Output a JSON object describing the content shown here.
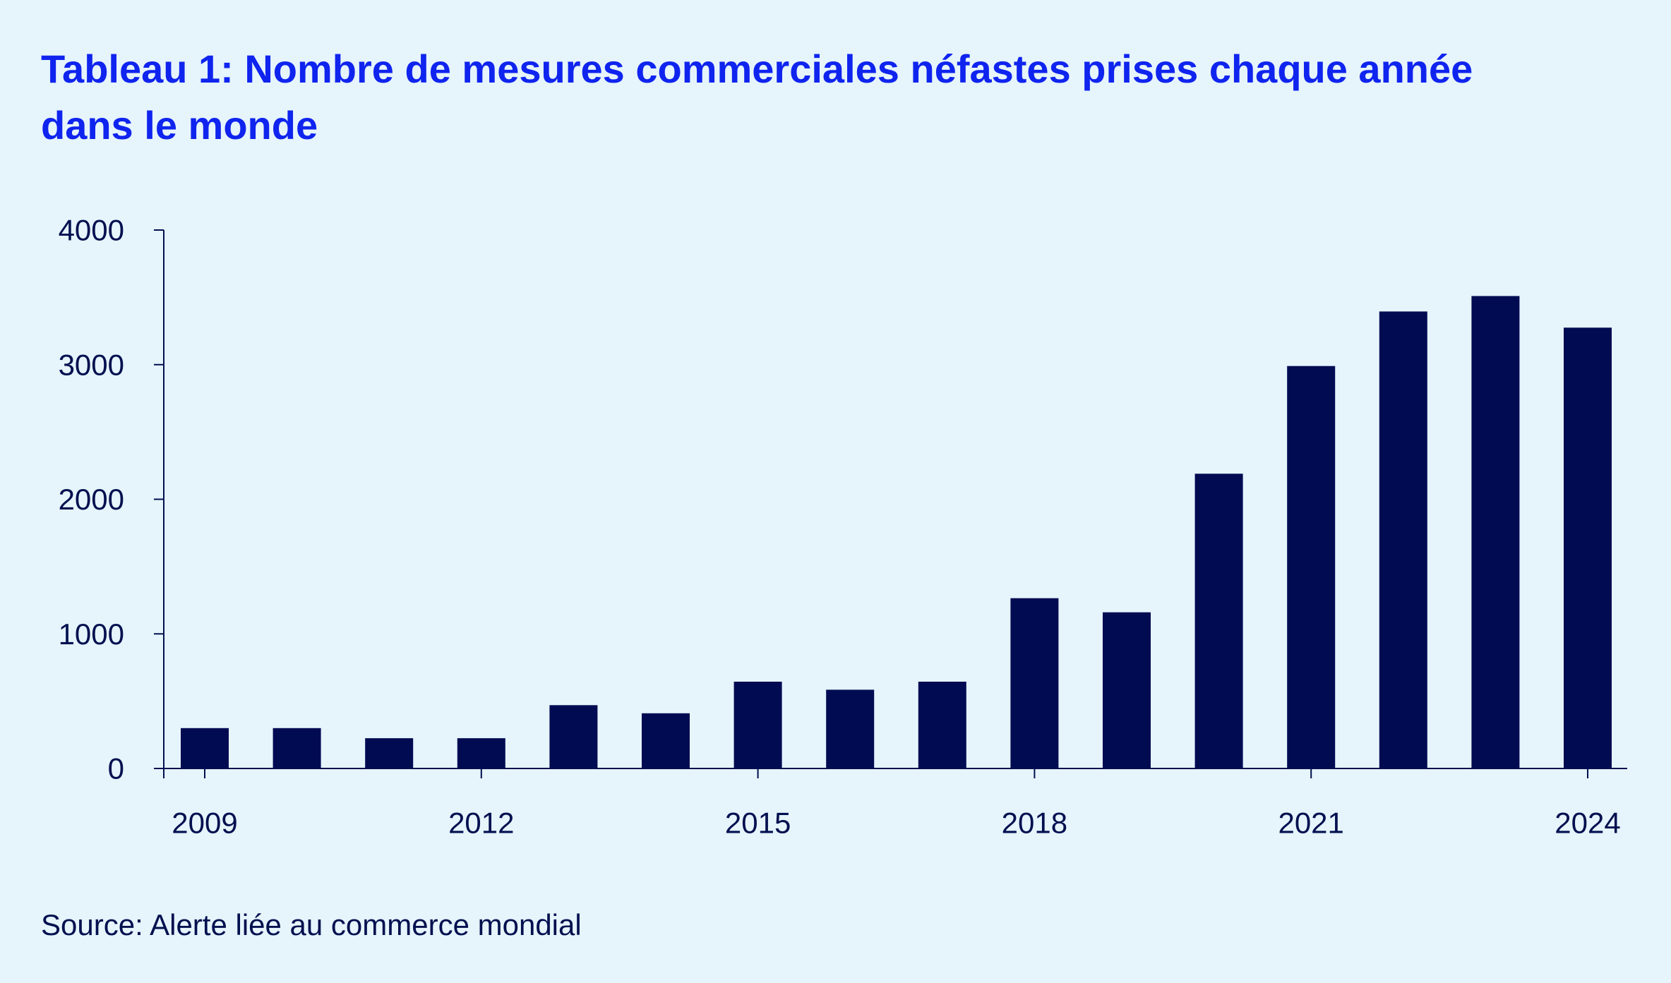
{
  "title": "Tableau 1: Nombre de mesures commerciales néfastes prises chaque année dans le monde",
  "source": "Source: Alerte liée au commerce mondial",
  "colors": {
    "background": "#e6f4fc",
    "title": "#0f24ee",
    "bar": "#000b52",
    "text": "#00104f"
  },
  "chart_data": {
    "type": "bar",
    "title": "Tableau 1: Nombre de mesures commerciales néfastes prises chaque année dans le monde",
    "xlabel": "",
    "ylabel": "",
    "categories": [
      "2009",
      "2010",
      "2011",
      "2012",
      "2013",
      "2014",
      "2015",
      "2016",
      "2017",
      "2018",
      "2019",
      "2020",
      "2021",
      "2022",
      "2023",
      "2024"
    ],
    "values": [
      300,
      300,
      225,
      225,
      470,
      410,
      645,
      585,
      645,
      1265,
      1160,
      2190,
      2990,
      3395,
      3510,
      3275
    ],
    "x_tick_labels": [
      "2009",
      "2012",
      "2015",
      "2018",
      "2021",
      "2024"
    ],
    "y_ticks": [
      0,
      1000,
      2000,
      3000,
      4000
    ],
    "ylim": [
      0,
      4000
    ],
    "grid": false,
    "legend": "none"
  }
}
